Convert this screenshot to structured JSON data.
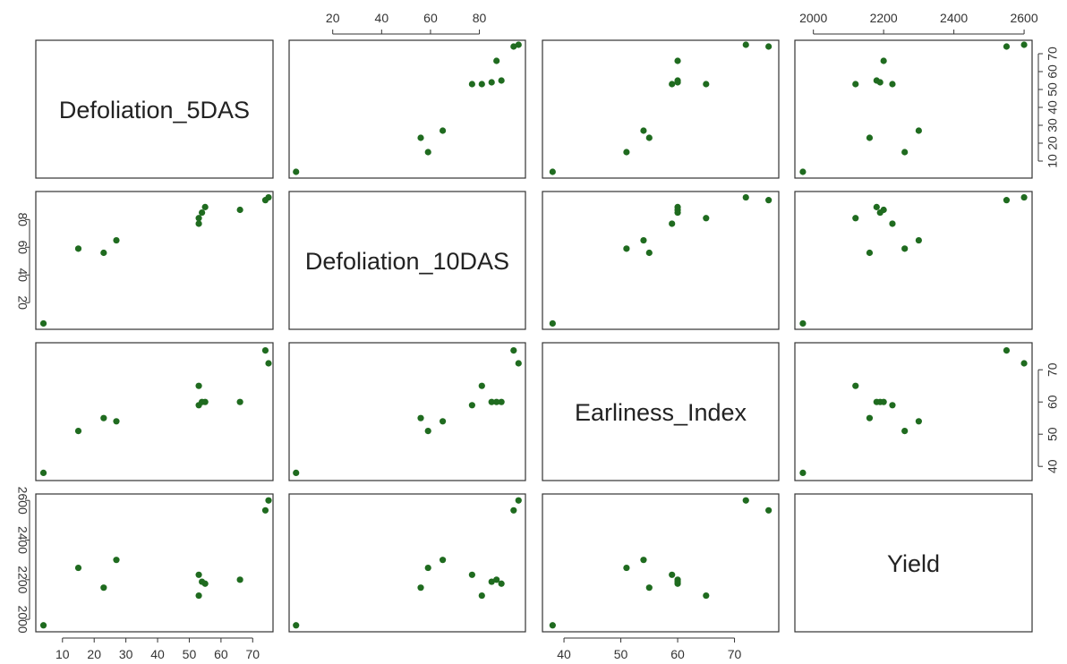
{
  "chart_data": {
    "type": "scatter",
    "subtype": "scatterplot-matrix",
    "grid": false,
    "marker_color": "#1f6b1f",
    "variables": [
      "Defoliation_5DAS",
      "Defoliation_10DAS",
      "Earliness_Index",
      "Yield"
    ],
    "diagonal_labels": [
      "Defoliation_5DAS",
      "Defoliation_10DAS",
      "Earliness_Index",
      "Yield"
    ],
    "ranges": {
      "Defoliation_5DAS": [
        3,
        75
      ],
      "Defoliation_10DAS": [
        4,
        97
      ],
      "Earliness_Index": [
        37,
        77
      ],
      "Yield": [
        1960,
        2610
      ]
    },
    "ticks": {
      "Defoliation_5DAS": [
        10,
        20,
        30,
        40,
        50,
        60,
        70
      ],
      "Defoliation_10DAS": [
        20,
        40,
        60,
        80
      ],
      "Earliness_Index": [
        40,
        50,
        60,
        70
      ],
      "Yield": [
        2000,
        2200,
        2400,
        2600
      ]
    },
    "observations": [
      {
        "Defoliation_5DAS": 4,
        "Defoliation_10DAS": 5,
        "Earliness_Index": 38,
        "Yield": 1970
      },
      {
        "Defoliation_5DAS": 15,
        "Defoliation_10DAS": 59,
        "Earliness_Index": 51,
        "Yield": 2260
      },
      {
        "Defoliation_5DAS": 23,
        "Defoliation_10DAS": 56,
        "Earliness_Index": 55,
        "Yield": 2160
      },
      {
        "Defoliation_5DAS": 27,
        "Defoliation_10DAS": 65,
        "Earliness_Index": 54,
        "Yield": 2300
      },
      {
        "Defoliation_5DAS": 53,
        "Defoliation_10DAS": 77,
        "Earliness_Index": 59,
        "Yield": 2225
      },
      {
        "Defoliation_5DAS": 53,
        "Defoliation_10DAS": 81,
        "Earliness_Index": 65,
        "Yield": 2120
      },
      {
        "Defoliation_5DAS": 55,
        "Defoliation_10DAS": 89,
        "Earliness_Index": 60,
        "Yield": 2180
      },
      {
        "Defoliation_5DAS": 54,
        "Defoliation_10DAS": 85,
        "Earliness_Index": 60,
        "Yield": 2190
      },
      {
        "Defoliation_5DAS": 66,
        "Defoliation_10DAS": 87,
        "Earliness_Index": 60,
        "Yield": 2200
      },
      {
        "Defoliation_5DAS": 74,
        "Defoliation_10DAS": 94,
        "Earliness_Index": 76,
        "Yield": 2550
      },
      {
        "Defoliation_5DAS": 75,
        "Defoliation_10DAS": 96,
        "Earliness_Index": 72,
        "Yield": 2600
      }
    ]
  }
}
